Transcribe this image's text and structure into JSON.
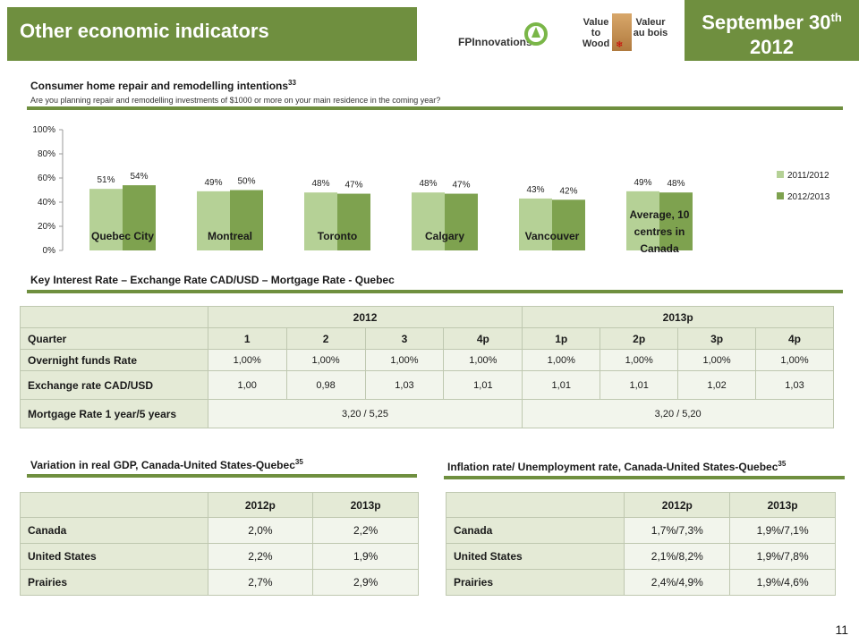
{
  "header": {
    "title": "Other economic indicators",
    "date_main": "September 30",
    "date_sup": "th",
    "date_year": "2012",
    "logo_fp": "FPInnovations",
    "logo_value_left": "Value to Wood",
    "logo_value_right": "Valeur au bois"
  },
  "intentions": {
    "title": "Consumer home repair and remodelling intentions",
    "title_sup": "33",
    "subtitle": "Are you planning repair and remodelling investments of $1000 or more on your main residence in the coming year?"
  },
  "chart_data": {
    "type": "bar",
    "categories": [
      "Quebec City",
      "Montreal",
      "Toronto",
      "Calgary",
      "Vancouver",
      "Average, 10 centres in Canada"
    ],
    "series": [
      {
        "name": "2011/2012",
        "color": "#b5d196",
        "values": [
          51,
          49,
          48,
          48,
          43,
          49
        ]
      },
      {
        "name": "2012/2013",
        "color": "#7ea24f",
        "values": [
          54,
          50,
          47,
          47,
          42,
          48
        ]
      }
    ],
    "data_labels": [
      [
        "51%",
        "49%",
        "48%",
        "48%",
        "43%",
        "49%"
      ],
      [
        "54%",
        "50%",
        "47%",
        "47%",
        "42%",
        "48%"
      ]
    ],
    "yticks": [
      "0%",
      "20%",
      "40%",
      "60%",
      "80%",
      "100%"
    ],
    "ylim": [
      0,
      100
    ],
    "legend_position": "right"
  },
  "rates": {
    "title": "Key Interest Rate – Exchange Rate CAD/USD – Mortgage Rate - Quebec",
    "year_2012": "2012",
    "year_2013": "2013p",
    "quarter_label": "Quarter",
    "quarters": [
      "1",
      "2",
      "3",
      "4p",
      "1p",
      "2p",
      "3p",
      "4p"
    ],
    "rows": [
      {
        "label": "Overnight funds Rate",
        "values": [
          "1,00%",
          "1,00%",
          "1,00%",
          "1,00%",
          "1,00%",
          "1,00%",
          "1,00%",
          "1,00%"
        ]
      },
      {
        "label": "Exchange rate CAD/USD",
        "values": [
          "1,00",
          "0,98",
          "1,03",
          "1,01",
          "1,01",
          "1,01",
          "1,02",
          "1,03"
        ]
      }
    ],
    "mortgage": {
      "label": "Mortgage Rate 1 year/5 years",
      "v2012": "3,20 / 5,25",
      "v2013": "3,20 / 5,20"
    }
  },
  "gdp": {
    "title": "Variation in real GDP, Canada-United States-Quebec",
    "title_sup": "35",
    "cols": [
      "2012p",
      "2013p"
    ],
    "rows": [
      {
        "label": "Canada",
        "values": [
          "2,0%",
          "2,2%"
        ]
      },
      {
        "label": "United States",
        "values": [
          "2,2%",
          "1,9%"
        ]
      },
      {
        "label": "Prairies",
        "values": [
          "2,7%",
          "2,9%"
        ]
      }
    ]
  },
  "inflation": {
    "title": "Inflation rate/ Unemployment rate, Canada-United States-Quebec",
    "title_sup": "35",
    "cols": [
      "2012p",
      "2013p"
    ],
    "rows": [
      {
        "label": "Canada",
        "values": [
          "1,7%/7,3%",
          "1,9%/7,1%"
        ]
      },
      {
        "label": "United States",
        "values": [
          "2,1%/8,2%",
          "1,9%/7,8%"
        ]
      },
      {
        "label": "Prairies",
        "values": [
          "2,4%/4,9%",
          "1,9%/4,6%"
        ]
      }
    ]
  },
  "page_number": "11"
}
